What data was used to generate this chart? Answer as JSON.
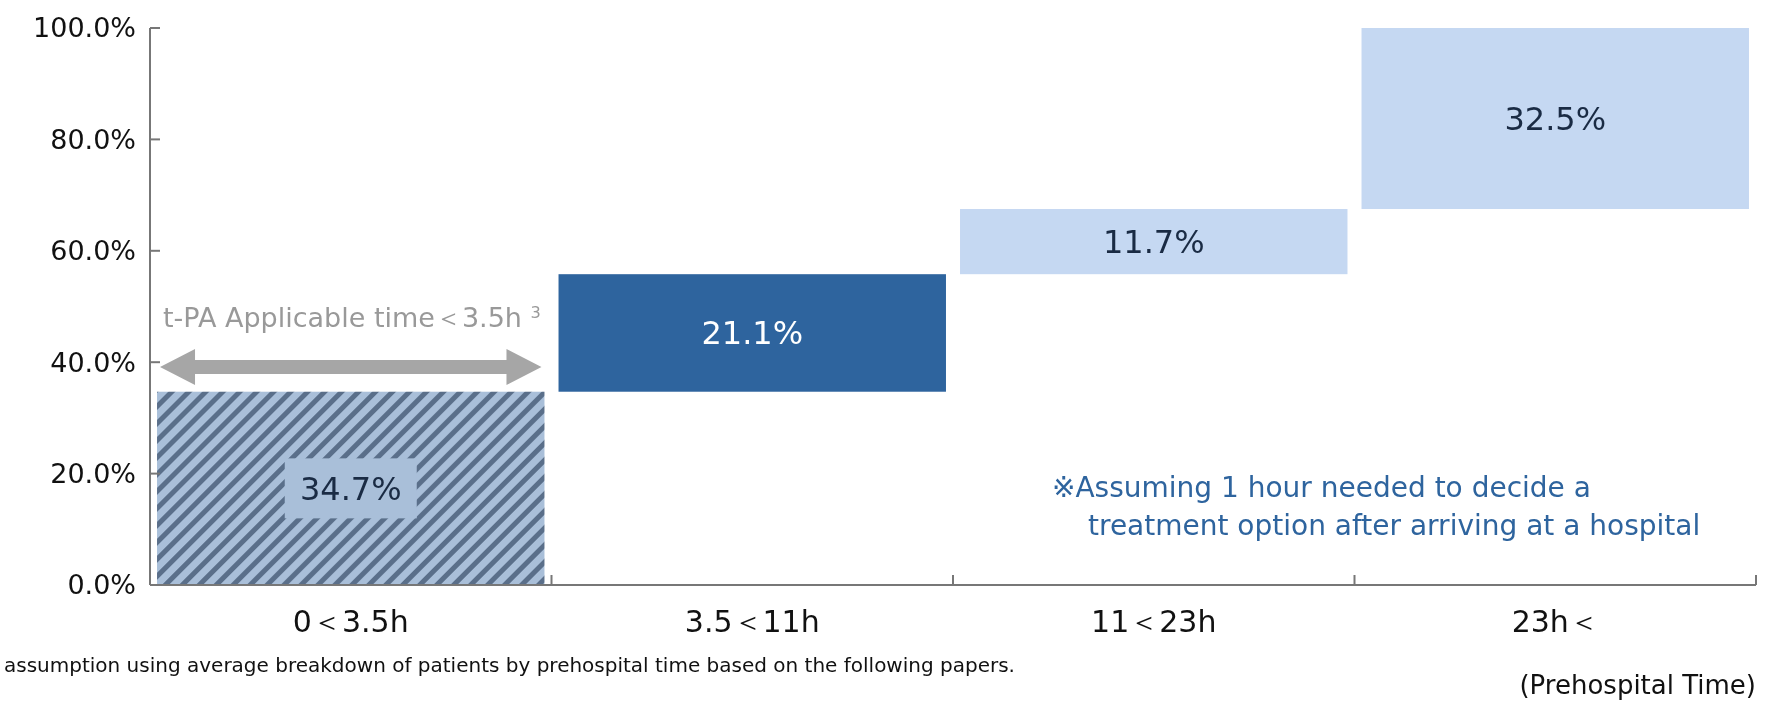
{
  "chart_data": {
    "type": "bar",
    "categories": [
      "0＜3.5h",
      "3.5＜11h",
      "11＜23h",
      "23h＜"
    ],
    "values": [
      34.7,
      21.1,
      11.7,
      32.5
    ],
    "base": [
      0,
      34.7,
      55.8,
      67.5
    ],
    "colors": [
      "#a9bfd9",
      "#2e649e",
      "#c5d8f2",
      "#c5d8f2"
    ],
    "value_labels": [
      "34.7%",
      "21.1%",
      "11.7%",
      "32.5%"
    ],
    "ylim": [
      0,
      100
    ],
    "yticks": [
      {
        "value": 0,
        "label": "0.0%"
      },
      {
        "value": 20,
        "label": "20.0%"
      },
      {
        "value": 40,
        "label": "40.0%"
      },
      {
        "value": 60,
        "label": "60.0%"
      },
      {
        "value": 80,
        "label": "80.0%"
      },
      {
        "value": 100,
        "label": "100.0%"
      }
    ],
    "xlabel": "(Prehospital Time)",
    "grid": false,
    "annotations": [
      "t-PA Applicable time＜3.5h $^{3}$",
      "※Assuming 1 hour needed to decide a\ntreatment option after arriving at a hospital",
      "assumption using average breakdown of patients by prehospital time based on the following papers."
    ]
  }
}
